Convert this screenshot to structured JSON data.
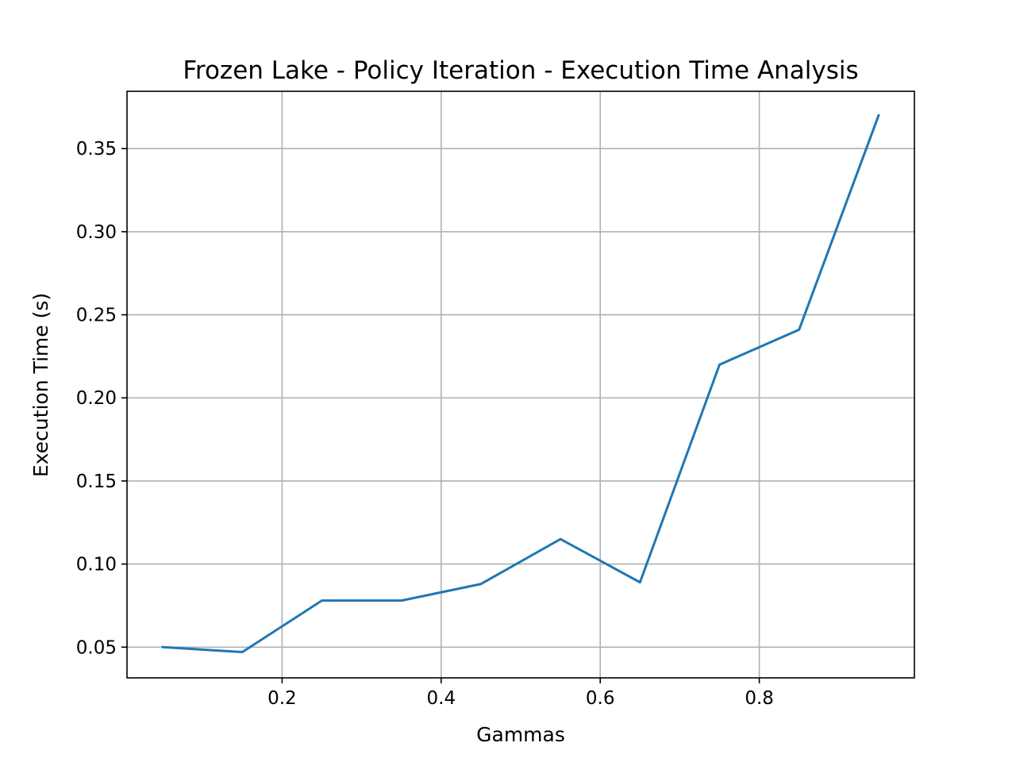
{
  "chart_data": {
    "type": "line",
    "title": "Frozen Lake - Policy Iteration - Execution Time Analysis",
    "xlabel": "Gammas",
    "ylabel": "Execution Time (s)",
    "xlim": [
      0.005,
      0.995
    ],
    "ylim": [
      0.0315,
      0.3845
    ],
    "xticks": [
      0.2,
      0.4,
      0.6,
      0.8
    ],
    "xtick_labels": [
      "0.2",
      "0.4",
      "0.6",
      "0.8"
    ],
    "yticks": [
      0.05,
      0.1,
      0.15,
      0.2,
      0.25,
      0.3,
      0.35
    ],
    "ytick_labels": [
      "0.05",
      "0.10",
      "0.15",
      "0.20",
      "0.25",
      "0.30",
      "0.35"
    ],
    "grid": true,
    "legend": "none",
    "series": [
      {
        "color": "#1f77b4",
        "x": [
          0.05,
          0.15,
          0.25,
          0.35,
          0.45,
          0.55,
          0.65,
          0.75,
          0.85,
          0.95
        ],
        "y": [
          0.05,
          0.047,
          0.078,
          0.078,
          0.088,
          0.115,
          0.089,
          0.22,
          0.241,
          0.37
        ]
      }
    ]
  }
}
